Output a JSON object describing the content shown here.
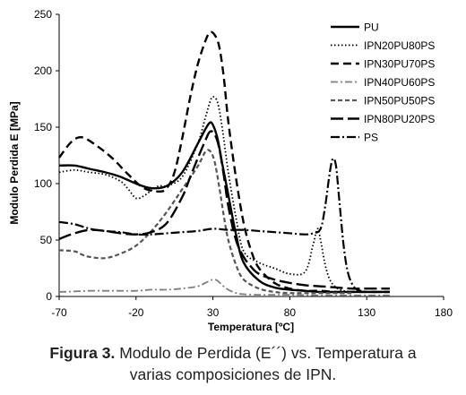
{
  "chart_data": {
    "type": "line",
    "xlabel": "Temperatura [ºC]",
    "ylabel": "Modulo Perdida  E  [MPa]",
    "xlim": [
      -70,
      180
    ],
    "ylim": [
      0,
      250
    ],
    "xticks": [
      -70,
      -20,
      30,
      80,
      130,
      180
    ],
    "yticks": [
      0,
      50,
      100,
      150,
      200,
      250
    ],
    "grid": false,
    "legend_position": "top-right",
    "series": [
      {
        "name": "PU",
        "color": "#000000",
        "dash": "",
        "width": 2.4,
        "x": [
          -70,
          -60,
          -50,
          -40,
          -30,
          -20,
          -10,
          0,
          10,
          20,
          25,
          28,
          30,
          33,
          36,
          40,
          45,
          50,
          60,
          70,
          80,
          90,
          100,
          110,
          120,
          130,
          140,
          145
        ],
        "y": [
          116,
          116,
          113,
          110,
          106,
          100,
          96,
          98,
          110,
          135,
          148,
          154,
          152,
          140,
          118,
          90,
          55,
          30,
          14,
          8,
          6,
          5,
          4,
          4,
          4,
          4,
          4,
          4
        ]
      },
      {
        "name": "IPN20PU80PS",
        "color": "#000000",
        "dash": "1.5,2.5",
        "width": 1.8,
        "x": [
          -70,
          -60,
          -50,
          -40,
          -30,
          -25,
          -20,
          -15,
          -10,
          -5,
          0,
          10,
          20,
          25,
          28,
          30,
          33,
          36,
          40,
          45,
          50,
          60,
          70,
          80,
          90,
          95,
          98,
          100,
          103,
          106,
          110,
          115,
          120
        ],
        "y": [
          110,
          112,
          110,
          108,
          102,
          95,
          87,
          89,
          94,
          98,
          98,
          106,
          135,
          158,
          172,
          177,
          172,
          150,
          110,
          70,
          40,
          30,
          25,
          20,
          22,
          45,
          60,
          50,
          28,
          15,
          8,
          5,
          4
        ]
      },
      {
        "name": "IPN30PU70PS",
        "color": "#000000",
        "dash": "9,5",
        "width": 2.4,
        "x": [
          -70,
          -62,
          -55,
          -45,
          -35,
          -25,
          -15,
          -5,
          0,
          5,
          10,
          15,
          20,
          25,
          28,
          31,
          34,
          37,
          40,
          45,
          50,
          55,
          60,
          70,
          80,
          90,
          100,
          110,
          120,
          130,
          140,
          145
        ],
        "y": [
          123,
          137,
          141,
          133,
          122,
          108,
          96,
          93,
          96,
          110,
          140,
          175,
          205,
          226,
          234,
          232,
          222,
          195,
          155,
          105,
          65,
          40,
          25,
          12,
          7,
          5,
          5,
          4,
          4,
          4,
          4,
          4
        ]
      },
      {
        "name": "IPN40PU60PS",
        "color": "#808080",
        "dash": "8,3,2,3",
        "width": 1.8,
        "x": [
          -70,
          -60,
          -50,
          -40,
          -30,
          -20,
          -10,
          0,
          10,
          20,
          25,
          30,
          33,
          36,
          40,
          45,
          50,
          60,
          70,
          80,
          100,
          120,
          145
        ],
        "y": [
          4,
          4.5,
          5,
          5,
          5,
          5,
          6,
          6,
          7,
          9,
          12,
          15,
          14,
          10,
          6,
          3,
          2,
          1.5,
          1.5,
          1.5,
          1,
          1,
          1
        ]
      },
      {
        "name": "IPN50PU50PS",
        "color": "#555555",
        "dash": "5,3",
        "width": 2.2,
        "x": [
          -70,
          -60,
          -55,
          -50,
          -40,
          -30,
          -20,
          -10,
          0,
          10,
          20,
          25,
          28,
          31,
          34,
          37,
          40,
          45,
          50,
          60,
          70,
          80,
          90,
          100,
          110,
          120
        ],
        "y": [
          41,
          40,
          37,
          35,
          34,
          38,
          45,
          58,
          75,
          95,
          115,
          128,
          129,
          120,
          98,
          72,
          50,
          28,
          15,
          7,
          4,
          3,
          3,
          3,
          3,
          3
        ]
      },
      {
        "name": "IPN80PU20PS",
        "color": "#000000",
        "dash": "14,5",
        "width": 2.4,
        "x": [
          -70,
          -60,
          -50,
          -40,
          -30,
          -20,
          -10,
          0,
          10,
          15,
          20,
          25,
          28,
          31,
          34,
          37,
          40,
          45,
          50,
          55,
          60,
          70,
          80,
          90,
          100,
          110,
          120,
          130,
          145
        ],
        "y": [
          51,
          56,
          59,
          58,
          56,
          55,
          57,
          65,
          88,
          105,
          122,
          138,
          146,
          144,
          132,
          108,
          80,
          50,
          35,
          26,
          20,
          15,
          12,
          10,
          9,
          8,
          7,
          7,
          7
        ]
      },
      {
        "name": "PS",
        "color": "#000000",
        "dash": "10,3,2,3",
        "width": 2.2,
        "x": [
          -70,
          -60,
          -50,
          -40,
          -30,
          -20,
          -10,
          0,
          10,
          20,
          30,
          40,
          50,
          60,
          70,
          80,
          90,
          95,
          100,
          103,
          106,
          108,
          110,
          112,
          115,
          118,
          122,
          126,
          130,
          145
        ],
        "y": [
          66,
          64,
          60,
          58,
          57,
          55,
          55,
          56,
          57,
          58,
          60,
          59,
          59,
          58,
          57,
          56,
          55,
          56,
          60,
          80,
          110,
          122,
          116,
          88,
          45,
          20,
          8,
          5,
          4,
          4
        ]
      }
    ]
  },
  "caption": {
    "bold": "Figura 3.",
    "line1": " Modulo de Perdida (E´´) vs. Temperatura a",
    "line2": "varias composiciones de IPN."
  }
}
